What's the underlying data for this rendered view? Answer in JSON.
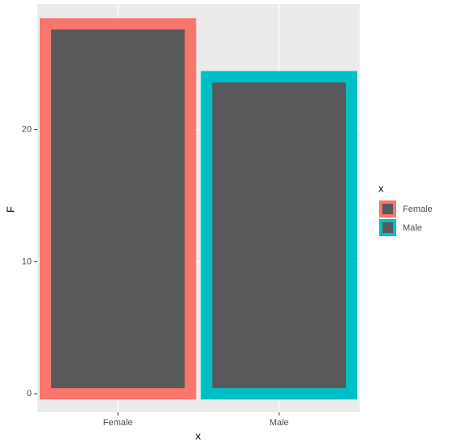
{
  "chart_data": {
    "type": "bar",
    "x_label": "x",
    "y_label": "F",
    "categories": [
      "Female",
      "Male"
    ],
    "values": [
      28,
      24
    ],
    "fill": "#595959",
    "series": [
      {
        "name": "Female",
        "color": "#F8766D"
      },
      {
        "name": "Male",
        "color": "#00BFC4"
      }
    ],
    "legend_title": "x",
    "ylim": [
      -1.4,
      29.5
    ],
    "yticks": [
      0,
      10,
      20
    ],
    "grid": true
  }
}
